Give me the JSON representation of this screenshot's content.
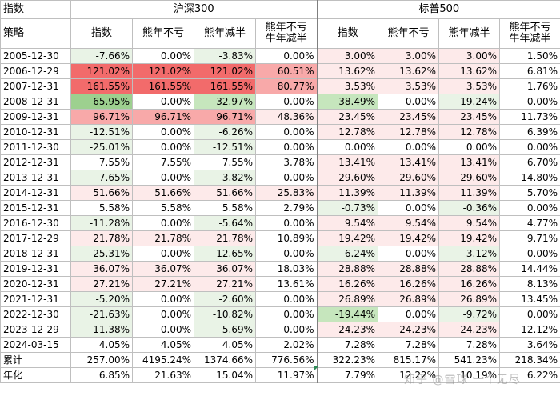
{
  "header": {
    "corner_label": "指数",
    "strategy_label": "策略",
    "group1": "沪深300",
    "group2": "标普500",
    "columns": [
      "指数",
      "熊年不亏",
      "熊年减半",
      "熊年不亏\n牛年减半",
      "指数",
      "熊年不亏",
      "熊年减半",
      "熊年不亏\n牛年减半"
    ]
  },
  "colors": {
    "strong_red": "#f26b6b",
    "mid_red": "#f8a9a9",
    "light_pink": "#fdeaea",
    "light_green": "#e9f3e6",
    "mid_green": "#c6e6bd",
    "strong_green": "#9dd08f",
    "white": "#ffffff",
    "grid": "#bfbfbf"
  },
  "rows": [
    {
      "date": "2005-12-30",
      "cells": [
        {
          "v": "-7.66%",
          "c": "light_green"
        },
        {
          "v": "0.00%",
          "c": "white"
        },
        {
          "v": "-3.83%",
          "c": "light_green"
        },
        {
          "v": "0.00%",
          "c": "white"
        },
        {
          "v": "3.00%",
          "c": "light_pink"
        },
        {
          "v": "3.00%",
          "c": "light_pink"
        },
        {
          "v": "3.00%",
          "c": "light_pink"
        },
        {
          "v": "1.50%",
          "c": "white"
        }
      ]
    },
    {
      "date": "2006-12-29",
      "cells": [
        {
          "v": "121.02%",
          "c": "strong_red"
        },
        {
          "v": "121.02%",
          "c": "strong_red"
        },
        {
          "v": "121.02%",
          "c": "strong_red"
        },
        {
          "v": "60.51%",
          "c": "mid_red"
        },
        {
          "v": "13.62%",
          "c": "light_pink"
        },
        {
          "v": "13.62%",
          "c": "light_pink"
        },
        {
          "v": "13.62%",
          "c": "light_pink"
        },
        {
          "v": "6.81%",
          "c": "white"
        }
      ]
    },
    {
      "date": "2007-12-31",
      "cells": [
        {
          "v": "161.55%",
          "c": "strong_red"
        },
        {
          "v": "161.55%",
          "c": "strong_red"
        },
        {
          "v": "161.55%",
          "c": "strong_red"
        },
        {
          "v": "80.77%",
          "c": "mid_red"
        },
        {
          "v": "3.53%",
          "c": "light_pink"
        },
        {
          "v": "3.53%",
          "c": "light_pink"
        },
        {
          "v": "3.53%",
          "c": "light_pink"
        },
        {
          "v": "1.76%",
          "c": "white"
        }
      ]
    },
    {
      "date": "2008-12-31",
      "cells": [
        {
          "v": "-65.95%",
          "c": "strong_green"
        },
        {
          "v": "0.00%",
          "c": "white"
        },
        {
          "v": "-32.97%",
          "c": "mid_green"
        },
        {
          "v": "0.00%",
          "c": "white"
        },
        {
          "v": "-38.49%",
          "c": "mid_green"
        },
        {
          "v": "0.00%",
          "c": "white"
        },
        {
          "v": "-19.24%",
          "c": "light_green"
        },
        {
          "v": "0.00%",
          "c": "white"
        }
      ]
    },
    {
      "date": "2009-12-31",
      "cells": [
        {
          "v": "96.71%",
          "c": "mid_red"
        },
        {
          "v": "96.71%",
          "c": "mid_red"
        },
        {
          "v": "96.71%",
          "c": "mid_red"
        },
        {
          "v": "48.36%",
          "c": "light_pink"
        },
        {
          "v": "23.45%",
          "c": "light_pink"
        },
        {
          "v": "23.45%",
          "c": "light_pink"
        },
        {
          "v": "23.45%",
          "c": "light_pink"
        },
        {
          "v": "11.73%",
          "c": "white"
        }
      ]
    },
    {
      "date": "2010-12-31",
      "cells": [
        {
          "v": "-12.51%",
          "c": "light_green"
        },
        {
          "v": "0.00%",
          "c": "white"
        },
        {
          "v": "-6.26%",
          "c": "light_green"
        },
        {
          "v": "0.00%",
          "c": "white"
        },
        {
          "v": "12.78%",
          "c": "light_pink"
        },
        {
          "v": "12.78%",
          "c": "light_pink"
        },
        {
          "v": "12.78%",
          "c": "light_pink"
        },
        {
          "v": "6.39%",
          "c": "white"
        }
      ]
    },
    {
      "date": "2011-12-30",
      "cells": [
        {
          "v": "-25.01%",
          "c": "light_green"
        },
        {
          "v": "0.00%",
          "c": "white"
        },
        {
          "v": "-12.51%",
          "c": "light_green"
        },
        {
          "v": "0.00%",
          "c": "white"
        },
        {
          "v": "0.00%",
          "c": "white"
        },
        {
          "v": "0.00%",
          "c": "white"
        },
        {
          "v": "0.00%",
          "c": "white"
        },
        {
          "v": "0.00%",
          "c": "white"
        }
      ]
    },
    {
      "date": "2012-12-31",
      "cells": [
        {
          "v": "7.55%",
          "c": "white"
        },
        {
          "v": "7.55%",
          "c": "white"
        },
        {
          "v": "7.55%",
          "c": "white"
        },
        {
          "v": "3.78%",
          "c": "white"
        },
        {
          "v": "13.41%",
          "c": "light_pink"
        },
        {
          "v": "13.41%",
          "c": "light_pink"
        },
        {
          "v": "13.41%",
          "c": "light_pink"
        },
        {
          "v": "6.70%",
          "c": "white"
        }
      ]
    },
    {
      "date": "2013-12-31",
      "cells": [
        {
          "v": "-7.65%",
          "c": "light_green"
        },
        {
          "v": "0.00%",
          "c": "white"
        },
        {
          "v": "-3.82%",
          "c": "light_green"
        },
        {
          "v": "0.00%",
          "c": "white"
        },
        {
          "v": "29.60%",
          "c": "light_pink"
        },
        {
          "v": "29.60%",
          "c": "light_pink"
        },
        {
          "v": "29.60%",
          "c": "light_pink"
        },
        {
          "v": "14.80%",
          "c": "white"
        }
      ]
    },
    {
      "date": "2014-12-31",
      "cells": [
        {
          "v": "51.66%",
          "c": "light_pink"
        },
        {
          "v": "51.66%",
          "c": "light_pink"
        },
        {
          "v": "51.66%",
          "c": "light_pink"
        },
        {
          "v": "25.83%",
          "c": "light_pink"
        },
        {
          "v": "11.39%",
          "c": "light_pink"
        },
        {
          "v": "11.39%",
          "c": "light_pink"
        },
        {
          "v": "11.39%",
          "c": "light_pink"
        },
        {
          "v": "5.70%",
          "c": "white"
        }
      ]
    },
    {
      "date": "2015-12-31",
      "cells": [
        {
          "v": "5.58%",
          "c": "white"
        },
        {
          "v": "5.58%",
          "c": "white"
        },
        {
          "v": "5.58%",
          "c": "white"
        },
        {
          "v": "2.79%",
          "c": "white"
        },
        {
          "v": "-0.73%",
          "c": "light_green"
        },
        {
          "v": "0.00%",
          "c": "white"
        },
        {
          "v": "-0.36%",
          "c": "light_green"
        },
        {
          "v": "0.00%",
          "c": "white"
        }
      ]
    },
    {
      "date": "2016-12-30",
      "cells": [
        {
          "v": "-11.28%",
          "c": "light_green"
        },
        {
          "v": "0.00%",
          "c": "white"
        },
        {
          "v": "-5.64%",
          "c": "light_green"
        },
        {
          "v": "0.00%",
          "c": "white"
        },
        {
          "v": "9.54%",
          "c": "light_pink"
        },
        {
          "v": "9.54%",
          "c": "light_pink"
        },
        {
          "v": "9.54%",
          "c": "light_pink"
        },
        {
          "v": "4.77%",
          "c": "white"
        }
      ]
    },
    {
      "date": "2017-12-29",
      "cells": [
        {
          "v": "21.78%",
          "c": "light_pink"
        },
        {
          "v": "21.78%",
          "c": "light_pink"
        },
        {
          "v": "21.78%",
          "c": "light_pink"
        },
        {
          "v": "10.89%",
          "c": "white"
        },
        {
          "v": "19.42%",
          "c": "light_pink"
        },
        {
          "v": "19.42%",
          "c": "light_pink"
        },
        {
          "v": "19.42%",
          "c": "light_pink"
        },
        {
          "v": "9.71%",
          "c": "white"
        }
      ]
    },
    {
      "date": "2018-12-31",
      "cells": [
        {
          "v": "-25.31%",
          "c": "light_green"
        },
        {
          "v": "0.00%",
          "c": "white"
        },
        {
          "v": "-12.65%",
          "c": "light_green"
        },
        {
          "v": "0.00%",
          "c": "white"
        },
        {
          "v": "-6.24%",
          "c": "light_green"
        },
        {
          "v": "0.00%",
          "c": "white"
        },
        {
          "v": "-3.12%",
          "c": "light_green"
        },
        {
          "v": "0.00%",
          "c": "white"
        }
      ]
    },
    {
      "date": "2019-12-31",
      "cells": [
        {
          "v": "36.07%",
          "c": "light_pink"
        },
        {
          "v": "36.07%",
          "c": "light_pink"
        },
        {
          "v": "36.07%",
          "c": "light_pink"
        },
        {
          "v": "18.03%",
          "c": "white"
        },
        {
          "v": "28.88%",
          "c": "light_pink"
        },
        {
          "v": "28.88%",
          "c": "light_pink"
        },
        {
          "v": "28.88%",
          "c": "light_pink"
        },
        {
          "v": "14.44%",
          "c": "white"
        }
      ]
    },
    {
      "date": "2020-12-31",
      "cells": [
        {
          "v": "27.21%",
          "c": "light_pink"
        },
        {
          "v": "27.21%",
          "c": "light_pink"
        },
        {
          "v": "27.21%",
          "c": "light_pink"
        },
        {
          "v": "13.61%",
          "c": "white"
        },
        {
          "v": "16.26%",
          "c": "light_pink"
        },
        {
          "v": "16.26%",
          "c": "light_pink"
        },
        {
          "v": "16.26%",
          "c": "light_pink"
        },
        {
          "v": "8.13%",
          "c": "white"
        }
      ]
    },
    {
      "date": "2021-12-31",
      "cells": [
        {
          "v": "-5.20%",
          "c": "light_green"
        },
        {
          "v": "0.00%",
          "c": "white"
        },
        {
          "v": "-2.60%",
          "c": "light_green"
        },
        {
          "v": "0.00%",
          "c": "white"
        },
        {
          "v": "26.89%",
          "c": "light_pink"
        },
        {
          "v": "26.89%",
          "c": "light_pink"
        },
        {
          "v": "26.89%",
          "c": "light_pink"
        },
        {
          "v": "13.45%",
          "c": "white"
        }
      ]
    },
    {
      "date": "2022-12-30",
      "cells": [
        {
          "v": "-21.63%",
          "c": "light_green"
        },
        {
          "v": "0.00%",
          "c": "white"
        },
        {
          "v": "-10.82%",
          "c": "light_green"
        },
        {
          "v": "0.00%",
          "c": "white"
        },
        {
          "v": "-19.44%",
          "c": "mid_green"
        },
        {
          "v": "0.00%",
          "c": "white"
        },
        {
          "v": "-9.72%",
          "c": "light_green"
        },
        {
          "v": "0.00%",
          "c": "white"
        }
      ]
    },
    {
      "date": "2023-12-29",
      "cells": [
        {
          "v": "-11.38%",
          "c": "light_green"
        },
        {
          "v": "0.00%",
          "c": "white"
        },
        {
          "v": "-5.69%",
          "c": "light_green"
        },
        {
          "v": "0.00%",
          "c": "white"
        },
        {
          "v": "24.23%",
          "c": "light_pink"
        },
        {
          "v": "24.23%",
          "c": "light_pink"
        },
        {
          "v": "24.23%",
          "c": "light_pink"
        },
        {
          "v": "12.12%",
          "c": "white"
        }
      ]
    },
    {
      "date": "2024-03-15",
      "cells": [
        {
          "v": "4.05%",
          "c": "white"
        },
        {
          "v": "4.05%",
          "c": "white"
        },
        {
          "v": "4.05%",
          "c": "white"
        },
        {
          "v": "2.02%",
          "c": "white"
        },
        {
          "v": "7.28%",
          "c": "white"
        },
        {
          "v": "7.28%",
          "c": "white"
        },
        {
          "v": "7.28%",
          "c": "white"
        },
        {
          "v": "3.64%",
          "c": "white"
        }
      ]
    }
  ],
  "summary": [
    {
      "label": "累计",
      "cells": [
        "257.00%",
        "4195.24%",
        "1374.66%",
        "776.56%",
        "322.23%",
        "815.17%",
        "541.23%",
        "218.34%"
      ]
    },
    {
      "label": "年化",
      "cells": [
        "6.85%",
        "21.63%",
        "15.04%",
        "11.97%",
        "7.79%",
        "12.22%",
        "10.19%",
        "6.22%"
      ]
    }
  ],
  "watermark": "知乎 @雪球 一个无尽"
}
